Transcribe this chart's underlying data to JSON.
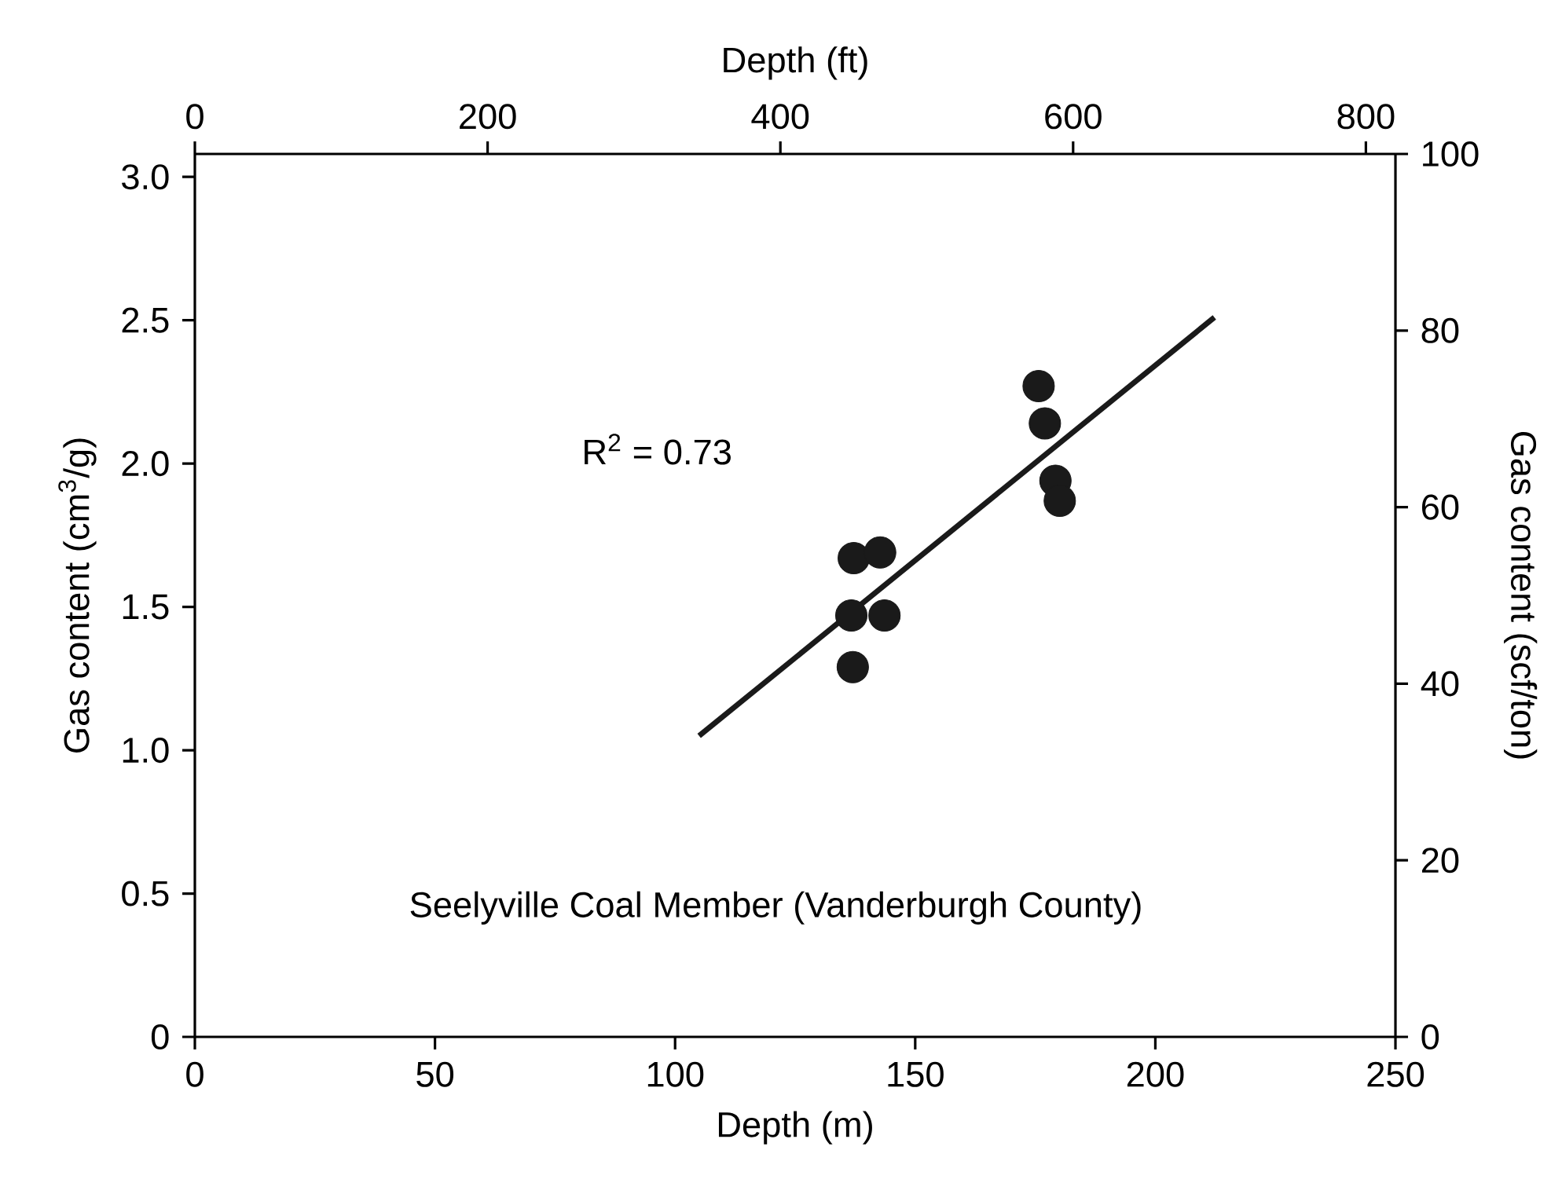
{
  "chart_data": {
    "type": "scatter",
    "xlabel": "Depth (m)",
    "ylabel": "Gas content (cm$^{3}$/g)",
    "x2label": "Depth (ft)",
    "y2label": "Gas content (scf/ton)",
    "xlim": [
      0,
      250
    ],
    "xticks": [
      0,
      50,
      100,
      150,
      200,
      250
    ],
    "ylim": [
      0,
      3.08
    ],
    "yticks": [
      0,
      0.5,
      {
        "value": 1,
        "label": "1.0"
      },
      1.5,
      {
        "value": 2,
        "label": "2.0"
      },
      2.5,
      {
        "value": 3,
        "label": "3.0"
      }
    ],
    "x2lim": [
      0,
      820.2
    ],
    "x2ticks": [
      0,
      200,
      400,
      600,
      800
    ],
    "y2lim": [
      0,
      100
    ],
    "y2ticks": [
      0,
      20,
      40,
      60,
      80,
      100
    ],
    "annotations": [
      "R$^{2}$ = 0.73",
      "Seelyville Coal Member (Vanderburgh County)"
    ],
    "grid": false,
    "series": [
      {
        "marker": "circle",
        "color": "#1a1a1a",
        "x": [
          137.2,
          142.7,
          136.7,
          143.6,
          137.0,
          175.7,
          177.0,
          179.2,
          180.1
        ],
        "values": [
          1.67,
          1.69,
          1.47,
          1.47,
          1.29,
          2.27,
          2.14,
          1.94,
          1.87
        ]
      },
      {
        "type": "line",
        "color": "#1a1a1a",
        "marker": "none",
        "line_style": "solid",
        "x": [
          105.0,
          212.3
        ],
        "values": [
          1.05,
          2.51
        ]
      }
    ]
  }
}
